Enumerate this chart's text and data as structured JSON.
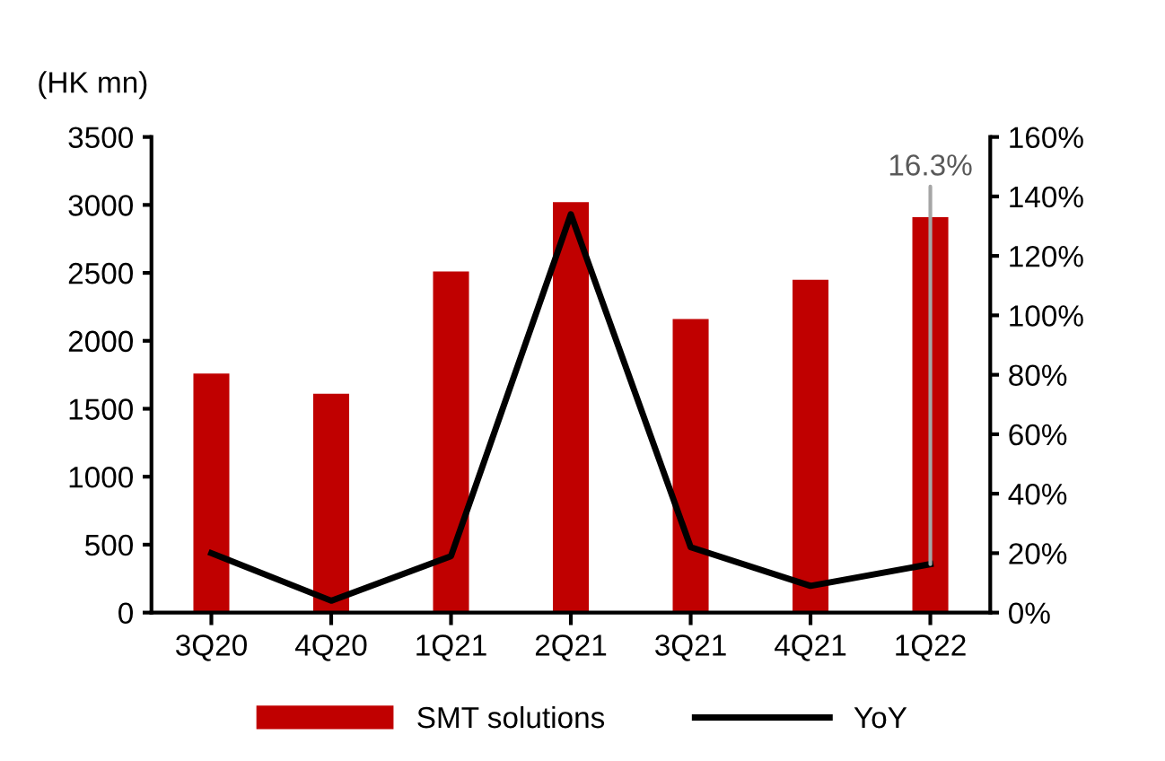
{
  "chart_data": {
    "type": "bar",
    "ylabel": "(HK mn)",
    "categories": [
      "3Q20",
      "4Q20",
      "1Q21",
      "2Q21",
      "3Q21",
      "4Q21",
      "1Q22"
    ],
    "series": [
      {
        "name": "SMT solutions",
        "color": "#c00000",
        "values": [
          1760,
          1610,
          2510,
          3020,
          2160,
          2450,
          2910
        ]
      },
      {
        "name": "YoY",
        "type": "line",
        "axis": "y2",
        "color": "#000000",
        "values": [
          20,
          4,
          19,
          134,
          22,
          9,
          16.3
        ]
      }
    ],
    "ylim": [
      0,
      3500
    ],
    "yticks": [
      0,
      500,
      1000,
      1500,
      2000,
      2500,
      3000,
      3500
    ],
    "y2lim": [
      0,
      160
    ],
    "y2ticks": [
      {
        "value": 0,
        "label": "0%"
      },
      {
        "value": 20,
        "label": "20%"
      },
      {
        "value": 40,
        "label": "40%"
      },
      {
        "value": 60,
        "label": "60%"
      },
      {
        "value": 80,
        "label": "80%"
      },
      {
        "value": 100,
        "label": "100%"
      },
      {
        "value": 120,
        "label": "120%"
      },
      {
        "value": 140,
        "label": "140%"
      },
      {
        "value": 160,
        "label": "160%"
      }
    ],
    "annotations": [
      "16.3%"
    ],
    "legend": "bottom",
    "grid": false,
    "marker": "none",
    "line_style": "solid"
  }
}
